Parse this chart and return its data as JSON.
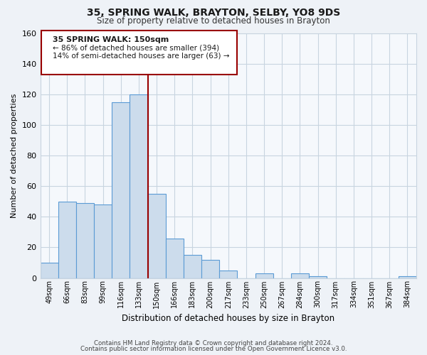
{
  "title": "35, SPRING WALK, BRAYTON, SELBY, YO8 9DS",
  "subtitle": "Size of property relative to detached houses in Brayton",
  "xlabel": "Distribution of detached houses by size in Brayton",
  "ylabel": "Number of detached properties",
  "bar_labels": [
    "49sqm",
    "66sqm",
    "83sqm",
    "99sqm",
    "116sqm",
    "133sqm",
    "150sqm",
    "166sqm",
    "183sqm",
    "200sqm",
    "217sqm",
    "233sqm",
    "250sqm",
    "267sqm",
    "284sqm",
    "300sqm",
    "317sqm",
    "334sqm",
    "351sqm",
    "367sqm",
    "384sqm"
  ],
  "bar_values": [
    10,
    50,
    49,
    48,
    115,
    120,
    55,
    26,
    15,
    12,
    5,
    0,
    3,
    0,
    3,
    1,
    0,
    0,
    0,
    0,
    1
  ],
  "bar_color": "#ccdcec",
  "bar_edge_color": "#5b9bd5",
  "vline_color": "#990000",
  "ylim": [
    0,
    160
  ],
  "yticks": [
    0,
    20,
    40,
    60,
    80,
    100,
    120,
    140,
    160
  ],
  "annotation_title": "35 SPRING WALK: 150sqm",
  "annotation_line1": "← 86% of detached houses are smaller (394)",
  "annotation_line2": "14% of semi-detached houses are larger (63) →",
  "footer1": "Contains HM Land Registry data © Crown copyright and database right 2024.",
  "footer2": "Contains public sector information licensed under the Open Government Licence v3.0.",
  "bg_color": "#eef2f7",
  "plot_bg_color": "#f5f8fc",
  "grid_color": "#c8d4e0"
}
